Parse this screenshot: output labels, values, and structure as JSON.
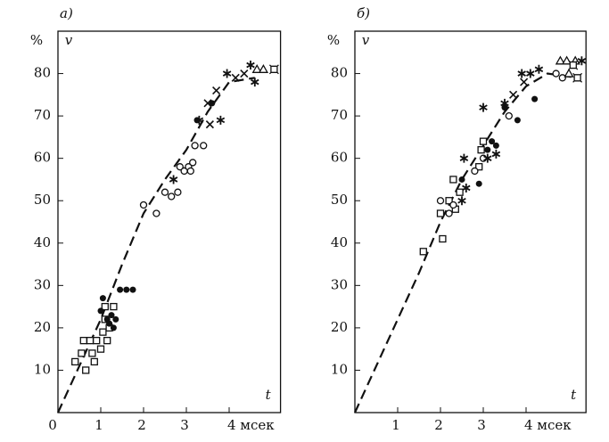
{
  "chart_data": [
    {
      "type": "scatter",
      "title": "а)",
      "ylabel_unit": "%",
      "ylabel": "v",
      "xlabel": "t",
      "xlim": [
        0,
        5.2
      ],
      "ylim": [
        0,
        90
      ],
      "xticks": [
        0,
        1,
        2,
        3,
        {
          "value": 4,
          "label": "4 мсек"
        }
      ],
      "yticks": [
        10,
        20,
        30,
        40,
        50,
        60,
        70,
        80
      ],
      "color": "#111111",
      "curve": {
        "style": "dashed",
        "x": [
          0,
          0.5,
          1,
          1.5,
          2,
          2.5,
          3,
          3.5,
          4,
          4.6
        ],
        "values": [
          0,
          11,
          22,
          35,
          47,
          55,
          62,
          71,
          78,
          79
        ]
      },
      "series": [
        {
          "marker": "square",
          "x": [
            0.4,
            0.55,
            0.6,
            0.65,
            0.75,
            0.8,
            0.85,
            0.9,
            1.0,
            1.05,
            1.1,
            1.15,
            1.2,
            1.3,
            1.1
          ],
          "values": [
            12,
            14,
            17,
            10,
            17,
            14,
            12,
            17,
            15,
            19,
            22,
            17,
            20,
            25,
            25
          ]
        },
        {
          "marker": "filled-circle",
          "x": [
            1.0,
            1.05,
            1.15,
            1.2,
            1.25,
            1.3,
            1.35,
            1.45,
            1.6,
            1.75,
            3.25,
            3.6
          ],
          "values": [
            24,
            27,
            22,
            21,
            23,
            20,
            22,
            29,
            29,
            29,
            69,
            73
          ]
        },
        {
          "marker": "circle",
          "x": [
            2.0,
            2.3,
            2.5,
            2.65,
            2.8,
            2.85,
            2.95,
            3.05,
            3.1,
            3.15,
            3.2,
            3.4
          ],
          "values": [
            49,
            47,
            52,
            51,
            52,
            58,
            57,
            58,
            57,
            59,
            63,
            63
          ]
        },
        {
          "marker": "asterisk",
          "x": [
            2.7,
            3.3,
            3.8,
            3.95,
            4.5,
            4.6
          ],
          "values": [
            55,
            69,
            69,
            80,
            82,
            78
          ]
        },
        {
          "marker": "cross",
          "x": [
            3.5,
            3.55,
            3.7,
            4.15,
            4.35
          ],
          "values": [
            73,
            68,
            76,
            79,
            80
          ]
        },
        {
          "marker": "triangle",
          "x": [
            4.65,
            4.8
          ],
          "values": [
            81,
            81
          ]
        },
        {
          "marker": "box-cross",
          "x": [
            5.05
          ],
          "values": [
            81
          ]
        }
      ]
    },
    {
      "type": "scatter",
      "title": "б)",
      "ylabel_unit": "%",
      "ylabel": "v",
      "xlabel": "t",
      "xlim": [
        0,
        5.4
      ],
      "ylim": [
        0,
        90
      ],
      "xticks": [
        1,
        2,
        3,
        {
          "value": 4,
          "label": "4 мсек"
        }
      ],
      "yticks": [
        10,
        20,
        30,
        40,
        50,
        60,
        70,
        80
      ],
      "color": "#111111",
      "curve": {
        "style": "dashed",
        "x": [
          0,
          0.5,
          1,
          1.5,
          2,
          2.5,
          3,
          3.5,
          4,
          4.5,
          5.2
        ],
        "values": [
          0,
          11,
          22,
          33,
          45,
          55,
          63,
          71,
          77,
          80,
          79
        ]
      },
      "series": [
        {
          "marker": "square",
          "x": [
            1.6,
            2.05,
            2.0,
            2.2,
            2.3,
            2.35,
            2.45,
            2.9,
            2.95,
            3.0
          ],
          "values": [
            38,
            41,
            47,
            50,
            55,
            48,
            52,
            58,
            62,
            64
          ]
        },
        {
          "marker": "circle",
          "x": [
            2.0,
            2.2,
            2.3,
            2.8,
            3.0,
            3.6,
            4.7,
            4.85
          ],
          "values": [
            50,
            47,
            49,
            57,
            60,
            70,
            80,
            79
          ]
        },
        {
          "marker": "filled-circle",
          "x": [
            2.5,
            2.9,
            3.1,
            3.2,
            3.3,
            3.5,
            3.8,
            4.2
          ],
          "values": [
            55,
            54,
            62,
            64,
            63,
            72,
            69,
            74
          ]
        },
        {
          "marker": "asterisk",
          "x": [
            2.5,
            2.6,
            2.55,
            3.0,
            3.1,
            3.3,
            3.5,
            3.9,
            4.1,
            4.3,
            5.3
          ],
          "values": [
            50,
            53,
            60,
            72,
            60,
            61,
            73,
            80,
            80,
            81,
            83
          ]
        },
        {
          "marker": "cross",
          "x": [
            3.7,
            3.95
          ],
          "values": [
            75,
            78
          ]
        },
        {
          "marker": "triangle",
          "x": [
            4.8,
            5.0,
            5.15,
            4.95
          ],
          "values": [
            83,
            80,
            83,
            83
          ]
        },
        {
          "marker": "box-cross",
          "x": [
            5.1,
            5.2
          ],
          "values": [
            82,
            79
          ]
        }
      ]
    }
  ]
}
